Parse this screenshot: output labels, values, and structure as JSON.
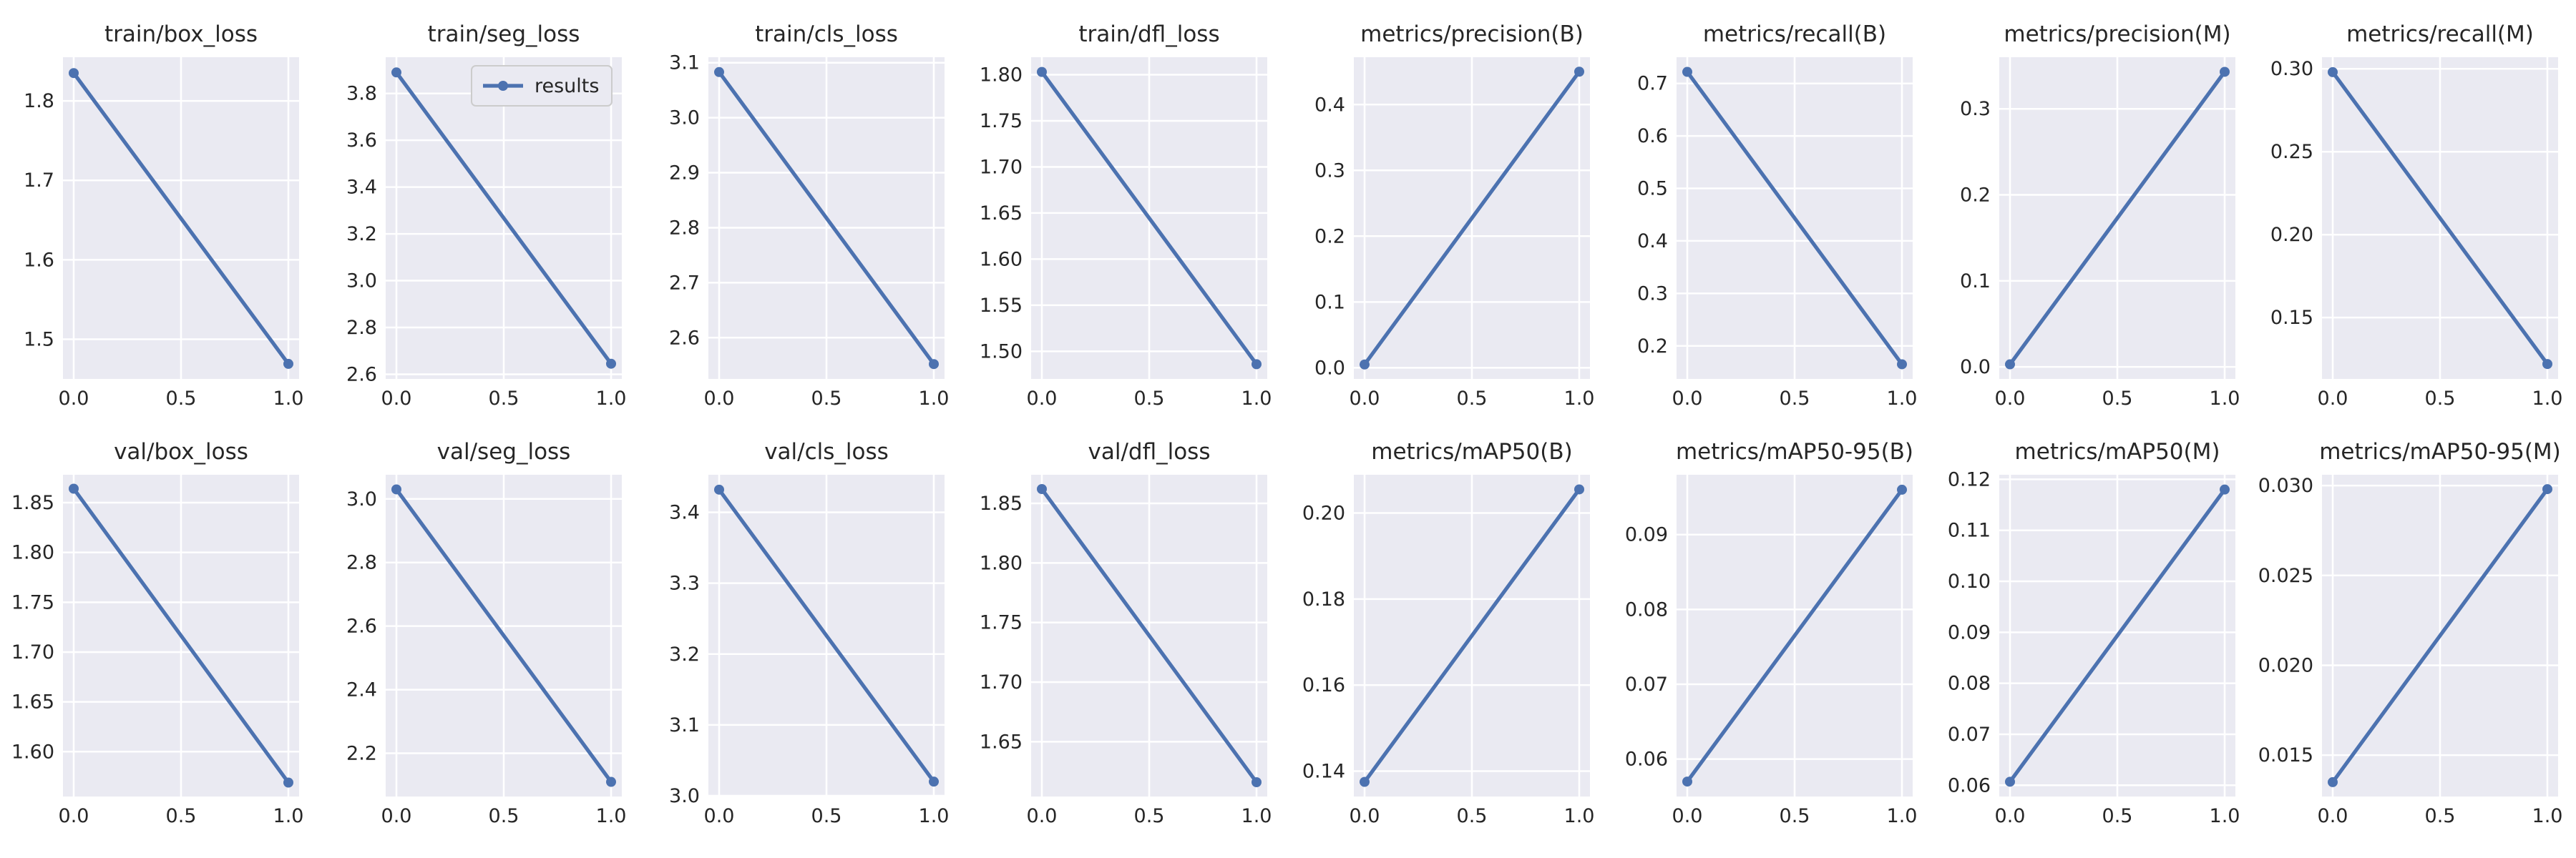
{
  "figure": {
    "series_color": "#4c72b0"
  },
  "chart_data": [
    {
      "type": "line",
      "title": "train/box_loss",
      "x": [
        0,
        1
      ],
      "series": [
        {
          "name": "results",
          "values": [
            1.835,
            1.469
          ]
        }
      ],
      "xlim": [
        -0.05,
        1.05
      ],
      "ylim": [
        1.45,
        1.855
      ],
      "xticks": [
        0,
        0.5,
        1
      ],
      "xtick_labels": [
        "0.0",
        "0.5",
        "1.0"
      ],
      "yticks": [
        1.5,
        1.6,
        1.7,
        1.8
      ],
      "ytick_labels": [
        "1.5",
        "1.6",
        "1.7",
        "1.8"
      ],
      "grid": true
    },
    {
      "type": "line",
      "title": "train/seg_loss",
      "x": [
        0,
        1
      ],
      "series": [
        {
          "name": "results",
          "values": [
            3.89,
            2.645
          ]
        }
      ],
      "xlim": [
        -0.05,
        1.05
      ],
      "ylim": [
        2.58,
        3.955
      ],
      "xticks": [
        0,
        0.5,
        1
      ],
      "xtick_labels": [
        "0.0",
        "0.5",
        "1.0"
      ],
      "yticks": [
        2.6,
        2.8,
        3.0,
        3.2,
        3.4,
        3.6,
        3.8
      ],
      "ytick_labels": [
        "2.6",
        "2.8",
        "3.0",
        "3.2",
        "3.4",
        "3.6",
        "3.8"
      ],
      "grid": true,
      "legend": {
        "entries": [
          "results"
        ],
        "placement": "upper right"
      }
    },
    {
      "type": "line",
      "title": "train/cls_loss",
      "x": [
        0,
        1
      ],
      "series": [
        {
          "name": "results",
          "values": [
            3.083,
            2.552
          ]
        }
      ],
      "xlim": [
        -0.05,
        1.05
      ],
      "ylim": [
        2.525,
        3.11
      ],
      "xticks": [
        0,
        0.5,
        1
      ],
      "xtick_labels": [
        "0.0",
        "0.5",
        "1.0"
      ],
      "yticks": [
        2.6,
        2.7,
        2.8,
        2.9,
        3.0,
        3.1
      ],
      "ytick_labels": [
        "2.6",
        "2.7",
        "2.8",
        "2.9",
        "3.0",
        "3.1"
      ],
      "grid": true
    },
    {
      "type": "line",
      "title": "train/dfl_loss",
      "x": [
        0,
        1
      ],
      "series": [
        {
          "name": "results",
          "values": [
            1.803,
            1.486
          ]
        }
      ],
      "xlim": [
        -0.05,
        1.05
      ],
      "ylim": [
        1.47,
        1.819
      ],
      "xticks": [
        0,
        0.5,
        1
      ],
      "xtick_labels": [
        "0.0",
        "0.5",
        "1.0"
      ],
      "yticks": [
        1.5,
        1.55,
        1.6,
        1.65,
        1.7,
        1.75,
        1.8
      ],
      "ytick_labels": [
        "1.50",
        "1.55",
        "1.60",
        "1.65",
        "1.70",
        "1.75",
        "1.80"
      ],
      "grid": true
    },
    {
      "type": "line",
      "title": "metrics/precision(B)",
      "x": [
        0,
        1
      ],
      "series": [
        {
          "name": "results",
          "values": [
            0.005,
            0.45
          ]
        }
      ],
      "xlim": [
        -0.05,
        1.05
      ],
      "ylim": [
        -0.017,
        0.472
      ],
      "xticks": [
        0,
        0.5,
        1
      ],
      "xtick_labels": [
        "0.0",
        "0.5",
        "1.0"
      ],
      "yticks": [
        0,
        0.1,
        0.2,
        0.3,
        0.4
      ],
      "ytick_labels": [
        "0.0",
        "0.1",
        "0.2",
        "0.3",
        "0.4"
      ],
      "grid": true
    },
    {
      "type": "line",
      "title": "metrics/recall(B)",
      "x": [
        0,
        1
      ],
      "series": [
        {
          "name": "results",
          "values": [
            0.722,
            0.165
          ]
        }
      ],
      "xlim": [
        -0.05,
        1.05
      ],
      "ylim": [
        0.137,
        0.75
      ],
      "xticks": [
        0,
        0.5,
        1
      ],
      "xtick_labels": [
        "0.0",
        "0.5",
        "1.0"
      ],
      "yticks": [
        0.2,
        0.3,
        0.4,
        0.5,
        0.6,
        0.7
      ],
      "ytick_labels": [
        "0.2",
        "0.3",
        "0.4",
        "0.5",
        "0.6",
        "0.7"
      ],
      "grid": true
    },
    {
      "type": "line",
      "title": "metrics/precision(M)",
      "x": [
        0,
        1
      ],
      "series": [
        {
          "name": "results",
          "values": [
            0.003,
            0.343
          ]
        }
      ],
      "xlim": [
        -0.05,
        1.05
      ],
      "ylim": [
        -0.014,
        0.36
      ],
      "xticks": [
        0,
        0.5,
        1
      ],
      "xtick_labels": [
        "0.0",
        "0.5",
        "1.0"
      ],
      "yticks": [
        0,
        0.1,
        0.2,
        0.3
      ],
      "ytick_labels": [
        "0.0",
        "0.1",
        "0.2",
        "0.3"
      ],
      "grid": true
    },
    {
      "type": "line",
      "title": "metrics/recall(M)",
      "x": [
        0,
        1
      ],
      "series": [
        {
          "name": "results",
          "values": [
            0.298,
            0.122
          ]
        }
      ],
      "xlim": [
        -0.05,
        1.05
      ],
      "ylim": [
        0.113,
        0.307
      ],
      "xticks": [
        0,
        0.5,
        1
      ],
      "xtick_labels": [
        "0.0",
        "0.5",
        "1.0"
      ],
      "yticks": [
        0.15,
        0.2,
        0.25,
        0.3
      ],
      "ytick_labels": [
        "0.15",
        "0.20",
        "0.25",
        "0.30"
      ],
      "grid": true
    },
    {
      "type": "line",
      "title": "val/box_loss",
      "x": [
        0,
        1
      ],
      "series": [
        {
          "name": "results",
          "values": [
            1.864,
            1.569
          ]
        }
      ],
      "xlim": [
        -0.05,
        1.05
      ],
      "ylim": [
        1.555,
        1.878
      ],
      "xticks": [
        0,
        0.5,
        1
      ],
      "xtick_labels": [
        "0.0",
        "0.5",
        "1.0"
      ],
      "yticks": [
        1.6,
        1.65,
        1.7,
        1.75,
        1.8,
        1.85
      ],
      "ytick_labels": [
        "1.60",
        "1.65",
        "1.70",
        "1.75",
        "1.80",
        "1.85"
      ],
      "grid": true
    },
    {
      "type": "line",
      "title": "val/seg_loss",
      "x": [
        0,
        1
      ],
      "series": [
        {
          "name": "results",
          "values": [
            3.03,
            2.11
          ]
        }
      ],
      "xlim": [
        -0.05,
        1.05
      ],
      "ylim": [
        2.064,
        3.076
      ],
      "xticks": [
        0,
        0.5,
        1
      ],
      "xtick_labels": [
        "0.0",
        "0.5",
        "1.0"
      ],
      "yticks": [
        2.2,
        2.4,
        2.6,
        2.8,
        3.0
      ],
      "ytick_labels": [
        "2.2",
        "2.4",
        "2.6",
        "2.8",
        "3.0"
      ],
      "grid": true
    },
    {
      "type": "line",
      "title": "val/cls_loss",
      "x": [
        0,
        1
      ],
      "series": [
        {
          "name": "results",
          "values": [
            3.432,
            3.02
          ]
        }
      ],
      "xlim": [
        -0.05,
        1.05
      ],
      "ylim": [
        2.999,
        3.453
      ],
      "xticks": [
        0,
        0.5,
        1
      ],
      "xtick_labels": [
        "0.0",
        "0.5",
        "1.0"
      ],
      "yticks": [
        3.0,
        3.1,
        3.2,
        3.3,
        3.4
      ],
      "ytick_labels": [
        "3.0",
        "3.1",
        "3.2",
        "3.3",
        "3.4"
      ],
      "grid": true
    },
    {
      "type": "line",
      "title": "val/dfl_loss",
      "x": [
        0,
        1
      ],
      "series": [
        {
          "name": "results",
          "values": [
            1.862,
            1.616
          ]
        }
      ],
      "xlim": [
        -0.05,
        1.05
      ],
      "ylim": [
        1.604,
        1.874
      ],
      "xticks": [
        0,
        0.5,
        1
      ],
      "xtick_labels": [
        "0.0",
        "0.5",
        "1.0"
      ],
      "yticks": [
        1.65,
        1.7,
        1.75,
        1.8,
        1.85
      ],
      "ytick_labels": [
        "1.65",
        "1.70",
        "1.75",
        "1.80",
        "1.85"
      ],
      "grid": true
    },
    {
      "type": "line",
      "title": "metrics/mAP50(B)",
      "x": [
        0,
        1
      ],
      "series": [
        {
          "name": "results",
          "values": [
            0.1375,
            0.2055
          ]
        }
      ],
      "xlim": [
        -0.05,
        1.05
      ],
      "ylim": [
        0.1341,
        0.2089
      ],
      "xticks": [
        0,
        0.5,
        1
      ],
      "xtick_labels": [
        "0.0",
        "0.5",
        "1.0"
      ],
      "yticks": [
        0.14,
        0.16,
        0.18,
        0.2
      ],
      "ytick_labels": [
        "0.14",
        "0.16",
        "0.18",
        "0.20"
      ],
      "grid": true
    },
    {
      "type": "line",
      "title": "metrics/mAP50-95(B)",
      "x": [
        0,
        1
      ],
      "series": [
        {
          "name": "results",
          "values": [
            0.057,
            0.096
          ]
        }
      ],
      "xlim": [
        -0.05,
        1.05
      ],
      "ylim": [
        0.055,
        0.098
      ],
      "xticks": [
        0,
        0.5,
        1
      ],
      "xtick_labels": [
        "0.0",
        "0.5",
        "1.0"
      ],
      "yticks": [
        0.06,
        0.07,
        0.08,
        0.09
      ],
      "ytick_labels": [
        "0.06",
        "0.07",
        "0.08",
        "0.09"
      ],
      "grid": true
    },
    {
      "type": "line",
      "title": "metrics/mAP50(M)",
      "x": [
        0,
        1
      ],
      "series": [
        {
          "name": "results",
          "values": [
            0.0607,
            0.118
          ]
        }
      ],
      "xlim": [
        -0.05,
        1.05
      ],
      "ylim": [
        0.0578,
        0.1209
      ],
      "xticks": [
        0,
        0.5,
        1
      ],
      "xtick_labels": [
        "0.0",
        "0.5",
        "1.0"
      ],
      "yticks": [
        0.06,
        0.07,
        0.08,
        0.09,
        0.1,
        0.11,
        0.12
      ],
      "ytick_labels": [
        "0.06",
        "0.07",
        "0.08",
        "0.09",
        "0.10",
        "0.11",
        "0.12"
      ],
      "grid": true
    },
    {
      "type": "line",
      "title": "metrics/mAP50-95(M)",
      "x": [
        0,
        1
      ],
      "series": [
        {
          "name": "results",
          "values": [
            0.0135,
            0.0298
          ]
        }
      ],
      "xlim": [
        -0.05,
        1.05
      ],
      "ylim": [
        0.0127,
        0.0306
      ],
      "xticks": [
        0,
        0.5,
        1
      ],
      "xtick_labels": [
        "0.0",
        "0.5",
        "1.0"
      ],
      "yticks": [
        0.015,
        0.02,
        0.025,
        0.03
      ],
      "ytick_labels": [
        "0.015",
        "0.020",
        "0.025",
        "0.030"
      ],
      "grid": true
    }
  ]
}
